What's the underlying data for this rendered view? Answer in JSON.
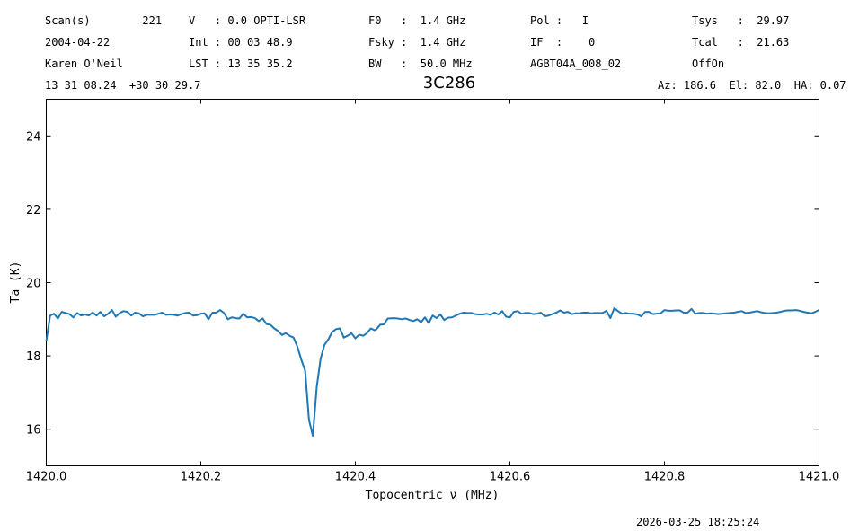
{
  "header": {
    "col1": {
      "row1": "Scan(s)        221",
      "row2": "2004-04-22",
      "row3": "Karen O'Neil",
      "row4": "13 31 08.24  +30 30 29.7"
    },
    "col2": {
      "row1": "V   : 0.0 OPTI-LSR",
      "row2": "Int : 00 03 48.9",
      "row3": "LST : 13 35 35.2"
    },
    "col3": {
      "row1": "F0   :  1.4 GHz",
      "row2": "Fsky :  1.4 GHz",
      "row3": "BW   :  50.0 MHz"
    },
    "col4": {
      "row1": "Pol :   I",
      "row2": "IF  :    0",
      "row3": "AGBT04A_008_02"
    },
    "col5": {
      "row1": "Tsys   :  29.97",
      "row2": "Tcal   :  21.63",
      "row3": "OffOn"
    },
    "azel": "Az: 186.6  El: 82.0  HA: 0.07"
  },
  "timestamp": "2026-03-25 18:25:24",
  "chart_data": {
    "type": "line",
    "title": "3C286",
    "xlabel": "Topocentric ν (MHz)",
    "ylabel": "Ta (K)",
    "xlim": [
      1420.0,
      1421.0
    ],
    "ylim": [
      15.0,
      25.0
    ],
    "xticks": [
      1420.0,
      1420.2,
      1420.4,
      1420.6,
      1420.8,
      1421.0
    ],
    "xtick_labels": [
      "1420.0",
      "1420.2",
      "1420.4",
      "1420.6",
      "1420.8",
      "1421.0"
    ],
    "yticks": [
      16,
      18,
      20,
      22,
      24
    ],
    "ytick_labels": [
      "16",
      "18",
      "20",
      "22",
      "24"
    ],
    "grid": false,
    "line_color": "#1f77b4",
    "series": [
      {
        "x": [
          1420.0,
          1420.005,
          1420.01,
          1420.015,
          1420.02,
          1420.025,
          1420.03,
          1420.035,
          1420.04,
          1420.045,
          1420.05,
          1420.055,
          1420.06,
          1420.065,
          1420.07,
          1420.075,
          1420.08,
          1420.085,
          1420.09,
          1420.095,
          1420.1,
          1420.105,
          1420.11,
          1420.115,
          1420.12,
          1420.125,
          1420.13,
          1420.135,
          1420.14,
          1420.145,
          1420.15,
          1420.155,
          1420.16,
          1420.165,
          1420.17,
          1420.175,
          1420.18,
          1420.185,
          1420.19,
          1420.195,
          1420.2,
          1420.205,
          1420.21,
          1420.215,
          1420.22,
          1420.225,
          1420.23,
          1420.235,
          1420.24,
          1420.245,
          1420.25,
          1420.255,
          1420.26,
          1420.265,
          1420.27,
          1420.275,
          1420.28,
          1420.285,
          1420.29,
          1420.295,
          1420.3,
          1420.305,
          1420.31,
          1420.315,
          1420.32,
          1420.325,
          1420.33,
          1420.335,
          1420.34,
          1420.345,
          1420.35,
          1420.355,
          1420.36,
          1420.365,
          1420.37,
          1420.375,
          1420.38,
          1420.385,
          1420.39,
          1420.395,
          1420.4,
          1420.405,
          1420.41,
          1420.415,
          1420.42,
          1420.425,
          1420.427,
          1420.432,
          1420.437,
          1420.442,
          1420.45,
          1420.455,
          1420.46,
          1420.465,
          1420.47,
          1420.475,
          1420.48,
          1420.485,
          1420.49,
          1420.495,
          1420.5,
          1420.505,
          1420.51,
          1420.515,
          1420.52,
          1420.525,
          1420.53,
          1420.535,
          1420.54,
          1420.545,
          1420.55,
          1420.555,
          1420.56,
          1420.565,
          1420.57,
          1420.575,
          1420.58,
          1420.585,
          1420.59,
          1420.595,
          1420.6,
          1420.605,
          1420.61,
          1420.615,
          1420.62,
          1420.625,
          1420.63,
          1420.635,
          1420.64,
          1420.645,
          1420.65,
          1420.655,
          1420.66,
          1420.665,
          1420.67,
          1420.675,
          1420.68,
          1420.685,
          1420.69,
          1420.695,
          1420.7,
          1420.705,
          1420.71,
          1420.715,
          1420.72,
          1420.725,
          1420.73,
          1420.735,
          1420.74,
          1420.745,
          1420.75,
          1420.755,
          1420.76,
          1420.765,
          1420.77,
          1420.775,
          1420.78,
          1420.785,
          1420.79,
          1420.795,
          1420.8,
          1420.805,
          1420.81,
          1420.815,
          1420.82,
          1420.825,
          1420.83,
          1420.835,
          1420.84,
          1420.845,
          1420.85,
          1420.855,
          1420.86,
          1420.865,
          1420.87,
          1420.875,
          1420.88,
          1420.885,
          1420.89,
          1420.895,
          1420.9,
          1420.905,
          1420.91,
          1420.915,
          1420.92,
          1420.925,
          1420.93,
          1420.935,
          1420.94,
          1420.945,
          1420.95,
          1420.955,
          1420.96,
          1420.965,
          1420.97,
          1420.975,
          1420.98,
          1420.985,
          1420.99,
          1420.995,
          1421.0
        ],
        "y": [
          18.4,
          19.1,
          19.15,
          19.02,
          19.2,
          19.17,
          19.14,
          19.05,
          19.17,
          19.1,
          19.13,
          19.1,
          19.18,
          19.1,
          19.2,
          19.08,
          19.15,
          19.25,
          19.07,
          19.17,
          19.22,
          19.2,
          19.1,
          19.18,
          19.16,
          19.08,
          19.12,
          19.12,
          19.12,
          19.15,
          19.18,
          19.12,
          19.13,
          19.12,
          19.1,
          19.14,
          19.17,
          19.18,
          19.1,
          19.11,
          19.15,
          19.16,
          19.0,
          19.18,
          19.18,
          19.25,
          19.17,
          19.0,
          19.05,
          19.03,
          19.02,
          19.15,
          19.05,
          19.06,
          19.03,
          18.95,
          19.02,
          18.87,
          18.85,
          18.75,
          18.68,
          18.57,
          18.62,
          18.55,
          18.5,
          18.25,
          17.9,
          17.6,
          16.25,
          15.82,
          17.15,
          17.92,
          18.3,
          18.45,
          18.65,
          18.73,
          18.75,
          18.5,
          18.55,
          18.62,
          18.48,
          18.58,
          18.55,
          18.62,
          18.75,
          18.7,
          18.72,
          18.85,
          18.86,
          19.02,
          19.03,
          19.02,
          19.0,
          19.02,
          18.98,
          18.95,
          19.0,
          18.92,
          19.05,
          18.9,
          19.1,
          19.03,
          19.13,
          18.98,
          19.04,
          19.05,
          19.1,
          19.15,
          19.18,
          19.17,
          19.17,
          19.14,
          19.13,
          19.13,
          19.15,
          19.12,
          19.18,
          19.13,
          19.22,
          19.07,
          19.05,
          19.2,
          19.22,
          19.15,
          19.17,
          19.17,
          19.14,
          19.15,
          19.18,
          19.08,
          19.1,
          19.14,
          19.18,
          19.24,
          19.18,
          19.2,
          19.14,
          19.16,
          19.16,
          19.18,
          19.18,
          19.16,
          19.17,
          19.17,
          19.17,
          19.23,
          19.03,
          19.3,
          19.22,
          19.15,
          19.17,
          19.15,
          19.15,
          19.13,
          19.08,
          19.2,
          19.2,
          19.14,
          19.15,
          19.16,
          19.25,
          19.23,
          19.23,
          19.24,
          19.24,
          19.18,
          19.18,
          19.28,
          19.15,
          19.17,
          19.17,
          19.15,
          19.16,
          19.15,
          19.14,
          19.15,
          19.16,
          19.17,
          19.18,
          19.2,
          19.22,
          19.17,
          19.18,
          19.2,
          19.22,
          19.19,
          19.17,
          19.16,
          19.17,
          19.18,
          19.2,
          19.23,
          19.24,
          19.24,
          19.25,
          19.23,
          19.2,
          19.18,
          19.16,
          19.2,
          19.25
        ]
      }
    ]
  }
}
